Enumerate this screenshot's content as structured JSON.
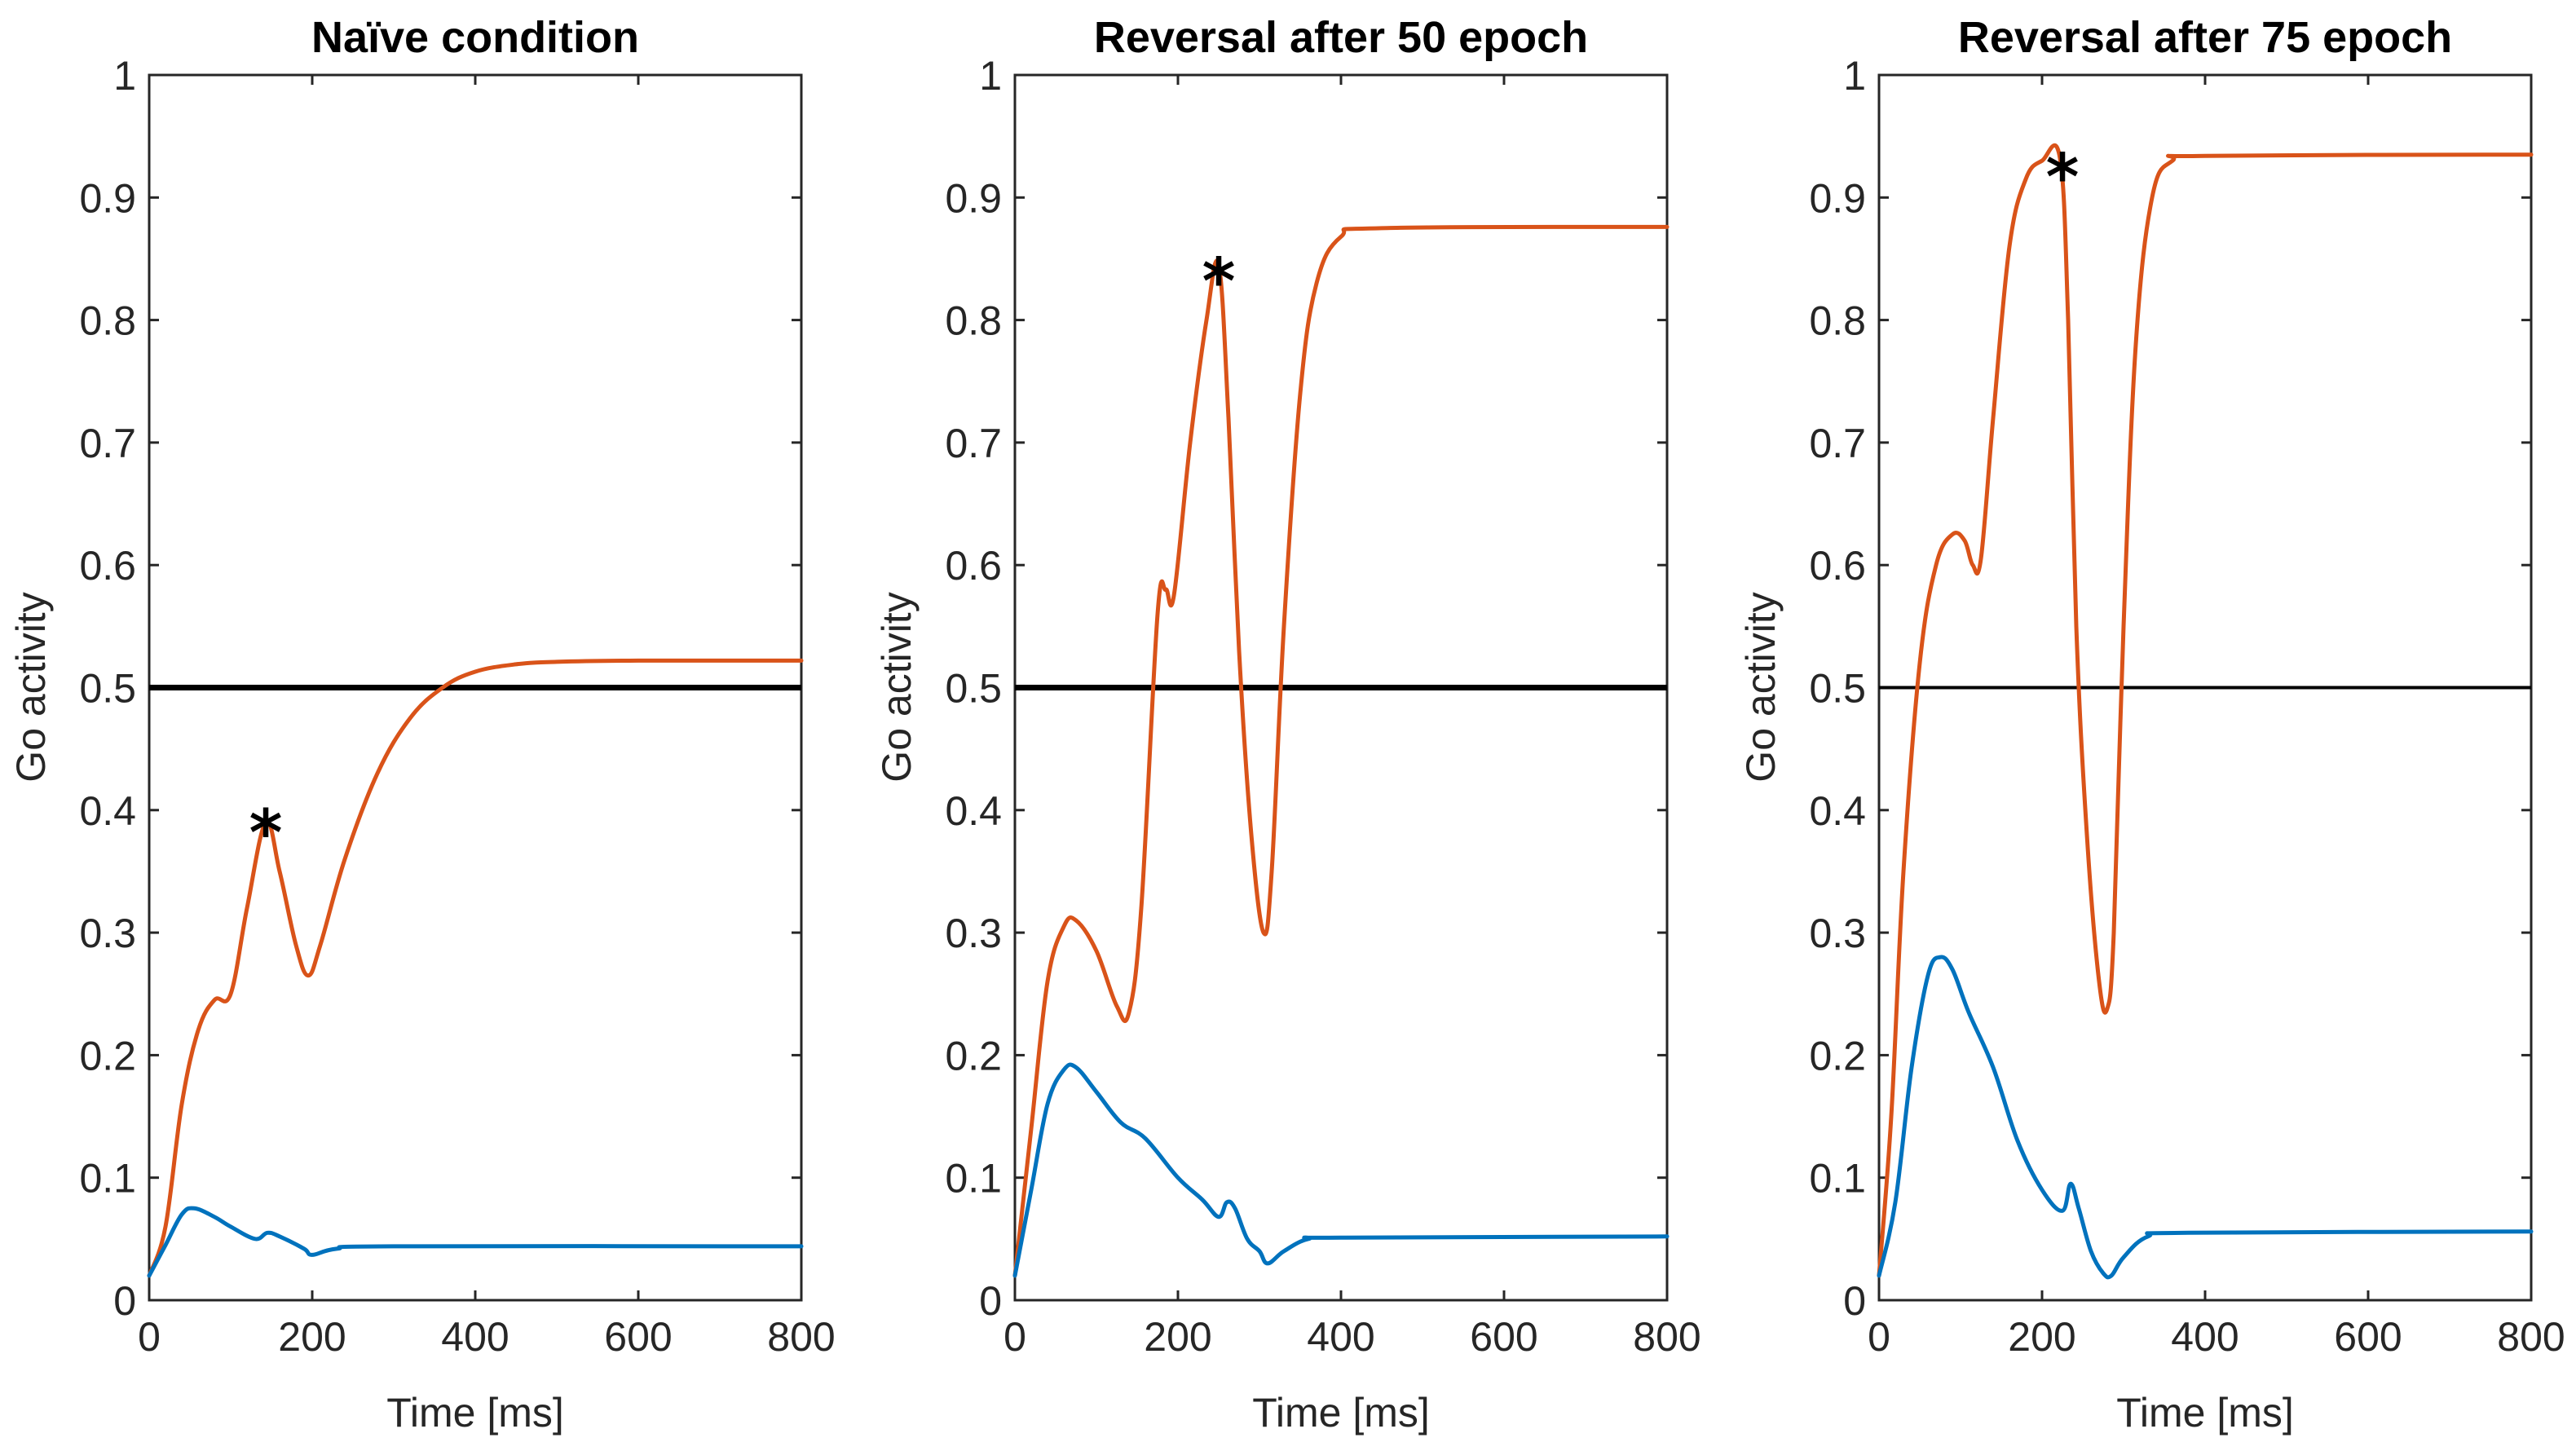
{
  "chart_data": [
    {
      "type": "line",
      "title": "Naïve condition",
      "xlabel": "Time [ms]",
      "ylabel": "Go activity",
      "xlim": [
        0,
        800
      ],
      "ylim": [
        0,
        1
      ],
      "xticks": [
        "0",
        "200",
        "400",
        "600",
        "800"
      ],
      "yticks": [
        "0",
        "0.1",
        "0.2",
        "0.3",
        "0.4",
        "0.5",
        "0.6",
        "0.7",
        "0.8",
        "0.9",
        "1"
      ],
      "threshold": {
        "y": 0.5,
        "color": "#000000"
      },
      "marker": {
        "symbol": "*",
        "x": 143,
        "y": 0.39
      },
      "series": [
        {
          "name": "orange",
          "color": "#D95319",
          "points": [
            [
              0,
              0.02
            ],
            [
              20,
              0.06
            ],
            [
              40,
              0.16
            ],
            [
              60,
              0.22
            ],
            [
              80,
              0.245
            ],
            [
              100,
              0.25
            ],
            [
              120,
              0.32
            ],
            [
              143,
              0.39
            ],
            [
              160,
              0.35
            ],
            [
              180,
              0.29
            ],
            [
              195,
              0.265
            ],
            [
              210,
              0.29
            ],
            [
              240,
              0.36
            ],
            [
              280,
              0.43
            ],
            [
              320,
              0.475
            ],
            [
              360,
              0.5
            ],
            [
              400,
              0.513
            ],
            [
              450,
              0.519
            ],
            [
              500,
              0.521
            ],
            [
              600,
              0.522
            ],
            [
              800,
              0.522
            ]
          ]
        },
        {
          "name": "blue",
          "color": "#0072BD",
          "points": [
            [
              0,
              0.02
            ],
            [
              20,
              0.045
            ],
            [
              40,
              0.07
            ],
            [
              55,
              0.075
            ],
            [
              80,
              0.068
            ],
            [
              100,
              0.06
            ],
            [
              130,
              0.05
            ],
            [
              145,
              0.055
            ],
            [
              160,
              0.052
            ],
            [
              190,
              0.042
            ],
            [
              200,
              0.037
            ],
            [
              230,
              0.042
            ],
            [
              300,
              0.044
            ],
            [
              800,
              0.044
            ]
          ]
        }
      ]
    },
    {
      "type": "line",
      "title": "Reversal after 50 epoch",
      "xlabel": "Time [ms]",
      "ylabel": "Go activity",
      "xlim": [
        0,
        800
      ],
      "ylim": [
        0,
        1
      ],
      "xticks": [
        "0",
        "200",
        "400",
        "600",
        "800"
      ],
      "yticks": [
        "0",
        "0.1",
        "0.2",
        "0.3",
        "0.4",
        "0.5",
        "0.6",
        "0.7",
        "0.8",
        "0.9",
        "1"
      ],
      "threshold": {
        "y": 0.5,
        "color": "#000000"
      },
      "marker": {
        "symbol": "*",
        "x": 250,
        "y": 0.84
      },
      "series": [
        {
          "name": "orange",
          "color": "#D95319",
          "points": [
            [
              0,
              0.02
            ],
            [
              20,
              0.14
            ],
            [
              40,
              0.26
            ],
            [
              60,
              0.305
            ],
            [
              75,
              0.31
            ],
            [
              100,
              0.285
            ],
            [
              125,
              0.24
            ],
            [
              140,
              0.235
            ],
            [
              155,
              0.32
            ],
            [
              175,
              0.56
            ],
            [
              185,
              0.58
            ],
            [
              195,
              0.575
            ],
            [
              215,
              0.7
            ],
            [
              235,
              0.8
            ],
            [
              250,
              0.845
            ],
            [
              262,
              0.72
            ],
            [
              275,
              0.53
            ],
            [
              290,
              0.38
            ],
            [
              305,
              0.3
            ],
            [
              315,
              0.35
            ],
            [
              330,
              0.55
            ],
            [
              350,
              0.74
            ],
            [
              370,
              0.83
            ],
            [
              400,
              0.868
            ],
            [
              450,
              0.875
            ],
            [
              800,
              0.876
            ]
          ]
        },
        {
          "name": "blue",
          "color": "#0072BD",
          "points": [
            [
              0,
              0.02
            ],
            [
              20,
              0.09
            ],
            [
              40,
              0.16
            ],
            [
              60,
              0.188
            ],
            [
              75,
              0.19
            ],
            [
              100,
              0.17
            ],
            [
              130,
              0.145
            ],
            [
              160,
              0.132
            ],
            [
              200,
              0.1
            ],
            [
              230,
              0.082
            ],
            [
              250,
              0.068
            ],
            [
              260,
              0.08
            ],
            [
              270,
              0.075
            ],
            [
              285,
              0.05
            ],
            [
              300,
              0.04
            ],
            [
              310,
              0.03
            ],
            [
              330,
              0.04
            ],
            [
              360,
              0.05
            ],
            [
              400,
              0.051
            ],
            [
              800,
              0.052
            ]
          ]
        }
      ]
    },
    {
      "type": "line",
      "title": "Reversal after 75 epoch",
      "xlabel": "Time [ms]",
      "ylabel": "Go activity",
      "xlim": [
        0,
        800
      ],
      "ylim": [
        0,
        1
      ],
      "xticks": [
        "0",
        "200",
        "400",
        "600",
        "800"
      ],
      "yticks": [
        "0",
        "0.1",
        "0.2",
        "0.3",
        "0.4",
        "0.5",
        "0.6",
        "0.7",
        "0.8",
        "0.9",
        "1"
      ],
      "threshold": {
        "y": 0.5,
        "color": "#000000"
      },
      "marker": {
        "symbol": "*",
        "x": 225,
        "y": 0.925
      },
      "series": [
        {
          "name": "orange",
          "color": "#D95319",
          "points": [
            [
              0,
              0.02
            ],
            [
              15,
              0.15
            ],
            [
              30,
              0.35
            ],
            [
              50,
              0.52
            ],
            [
              70,
              0.6
            ],
            [
              90,
              0.625
            ],
            [
              105,
              0.62
            ],
            [
              115,
              0.6
            ],
            [
              125,
              0.605
            ],
            [
              140,
              0.72
            ],
            [
              160,
              0.86
            ],
            [
              180,
              0.915
            ],
            [
              200,
              0.93
            ],
            [
              222,
              0.932
            ],
            [
              232,
              0.8
            ],
            [
              242,
              0.55
            ],
            [
              255,
              0.38
            ],
            [
              270,
              0.26
            ],
            [
              280,
              0.238
            ],
            [
              288,
              0.3
            ],
            [
              300,
              0.55
            ],
            [
              315,
              0.78
            ],
            [
              335,
              0.9
            ],
            [
              360,
              0.93
            ],
            [
              400,
              0.934
            ],
            [
              800,
              0.935
            ]
          ]
        },
        {
          "name": "blue",
          "color": "#0072BD",
          "points": [
            [
              0,
              0.02
            ],
            [
              20,
              0.08
            ],
            [
              40,
              0.19
            ],
            [
              60,
              0.265
            ],
            [
              75,
              0.28
            ],
            [
              90,
              0.27
            ],
            [
              110,
              0.235
            ],
            [
              140,
              0.19
            ],
            [
              170,
              0.13
            ],
            [
              200,
              0.09
            ],
            [
              225,
              0.073
            ],
            [
              235,
              0.095
            ],
            [
              245,
              0.075
            ],
            [
              260,
              0.04
            ],
            [
              275,
              0.022
            ],
            [
              285,
              0.02
            ],
            [
              300,
              0.035
            ],
            [
              330,
              0.052
            ],
            [
              380,
              0.055
            ],
            [
              800,
              0.056
            ]
          ]
        }
      ]
    }
  ]
}
